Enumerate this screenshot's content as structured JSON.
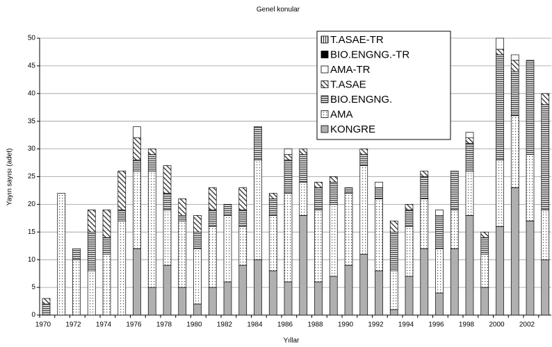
{
  "chart_data": {
    "type": "stacked_bar",
    "title": "Genel konular",
    "x_label": "Yıllar",
    "y_label": "Yayın sayısı (adet)",
    "categories": [
      "1970",
      null,
      "1972",
      null,
      "1974",
      null,
      "1976",
      null,
      "1978",
      null,
      "1980",
      null,
      "1982",
      null,
      "1984",
      null,
      "1986",
      null,
      "1988",
      null,
      "1990",
      null,
      "1992",
      null,
      "1994",
      null,
      "1996",
      null,
      "1998",
      null,
      "2000",
      null,
      "2002",
      null
    ],
    "ylim": [
      0,
      50
    ],
    "yticks": [
      0,
      5,
      10,
      15,
      20,
      25,
      30,
      35,
      40,
      45,
      50
    ],
    "grid": true,
    "series": [
      {
        "name": "KONGRE",
        "color": "#b0b0b0",
        "pattern": "solid",
        "values": [
          0,
          0,
          0,
          0,
          0,
          0,
          12,
          5,
          9,
          5,
          2,
          5,
          6,
          9,
          10,
          8,
          6,
          18,
          6,
          7,
          9,
          11,
          8,
          1,
          7,
          12,
          4,
          12,
          18,
          5,
          16,
          23,
          17,
          10
        ]
      },
      {
        "name": "AMA",
        "color": "#ffffff",
        "pattern": "dots",
        "values": [
          0,
          22,
          10,
          8,
          11,
          17,
          14,
          21,
          10,
          12,
          10,
          11,
          12,
          7,
          18,
          10,
          16,
          6,
          13,
          13,
          13,
          16,
          13,
          7,
          9,
          9,
          8,
          7,
          8,
          6,
          12,
          13,
          12,
          9
        ]
      },
      {
        "name": "BIO.ENGNG.",
        "color": "#555555",
        "pattern": "hlines",
        "values": [
          2,
          0,
          2,
          7,
          3,
          2,
          2,
          3,
          3,
          1,
          3,
          3,
          2,
          3,
          6,
          3,
          6,
          5,
          4,
          4,
          1,
          2,
          2,
          7,
          3,
          4,
          6,
          7,
          5,
          3,
          19,
          8,
          17,
          19
        ]
      },
      {
        "name": "T.ASAE",
        "color": "#555555",
        "pattern": "hatch",
        "values": [
          1,
          0,
          0,
          4,
          5,
          7,
          4,
          1,
          5,
          3,
          3,
          4,
          0,
          4,
          0,
          1,
          1,
          1,
          1,
          1,
          0,
          1,
          0,
          2,
          1,
          1,
          0,
          0,
          1,
          1,
          1,
          2,
          0,
          2
        ]
      },
      {
        "name": "AMA-TR",
        "color": "#ffffff",
        "pattern": "solid",
        "values": [
          0,
          0,
          0,
          0,
          0,
          0,
          2,
          0,
          0,
          0,
          0,
          0,
          0,
          0,
          0,
          0,
          1,
          0,
          0,
          0,
          0,
          0,
          1,
          0,
          0,
          0,
          1,
          0,
          1,
          0,
          2,
          1,
          0,
          0
        ]
      },
      {
        "name": "BIO.ENGNG.-TR",
        "color": "#000000",
        "pattern": "solid",
        "values": [
          0,
          0,
          0,
          0,
          0,
          0,
          0,
          0,
          0,
          0,
          0,
          0,
          0,
          0,
          0,
          0,
          0,
          0,
          0,
          0,
          0,
          0,
          0,
          0,
          0,
          0,
          0,
          0,
          0,
          0,
          0,
          0,
          0,
          0
        ]
      },
      {
        "name": "T.ASAE-TR",
        "color": "#333333",
        "pattern": "vlines",
        "values": [
          0,
          0,
          0,
          0,
          0,
          0,
          0,
          0,
          0,
          0,
          0,
          0,
          0,
          0,
          0,
          0,
          0,
          0,
          0,
          0,
          0,
          0,
          0,
          0,
          0,
          0,
          0,
          0,
          0,
          0,
          0,
          0,
          0,
          0
        ]
      }
    ]
  }
}
